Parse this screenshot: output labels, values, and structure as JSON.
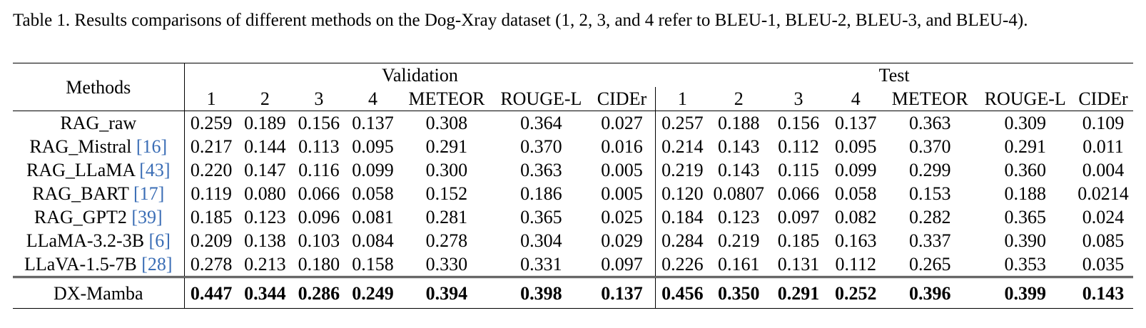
{
  "caption": {
    "label": "Table 1.",
    "text": "Results comparisons of different methods on the Dog-Xray dataset (1, 2, 3, and 4 refer to BLEU-1, BLEU-2, BLEU-3, and BLEU-4)."
  },
  "table": {
    "methods_header": "Methods",
    "group_validation": "Validation",
    "group_test": "Test",
    "columns": [
      "1",
      "2",
      "3",
      "4",
      "METEOR",
      "ROUGE-L",
      "CIDEr"
    ],
    "rows": [
      {
        "name": "RAG_raw",
        "ref": "",
        "val": [
          "0.259",
          "0.189",
          "0.156",
          "0.137",
          "0.308",
          "0.364",
          "0.027"
        ],
        "test": [
          "0.257",
          "0.188",
          "0.156",
          "0.137",
          "0.363",
          "0.309",
          "0.109"
        ]
      },
      {
        "name": "RAG_Mistral ",
        "ref": "[16]",
        "val": [
          "0.217",
          "0.144",
          "0.113",
          "0.095",
          "0.291",
          "0.370",
          "0.016"
        ],
        "test": [
          "0.214",
          "0.143",
          "0.112",
          "0.095",
          "0.370",
          "0.291",
          "0.011"
        ]
      },
      {
        "name": "RAG_LLaMA ",
        "ref": "[43]",
        "val": [
          "0.220",
          "0.147",
          "0.116",
          "0.099",
          "0.300",
          "0.363",
          "0.005"
        ],
        "test": [
          "0.219",
          "0.143",
          "0.115",
          "0.099",
          "0.299",
          "0.360",
          "0.004"
        ]
      },
      {
        "name": "RAG_BART ",
        "ref": "[17]",
        "val": [
          "0.119",
          "0.080",
          "0.066",
          "0.058",
          "0.152",
          "0.186",
          "0.005"
        ],
        "test": [
          "0.120",
          "0.0807",
          "0.066",
          "0.058",
          "0.153",
          "0.188",
          "0.0214"
        ]
      },
      {
        "name": "RAG_GPT2 ",
        "ref": "[39]",
        "val": [
          "0.185",
          "0.123",
          "0.096",
          "0.081",
          "0.281",
          "0.365",
          "0.025"
        ],
        "test": [
          "0.184",
          "0.123",
          "0.097",
          "0.082",
          "0.282",
          "0.365",
          "0.024"
        ]
      },
      {
        "name": "LLaMA-3.2-3B ",
        "ref": "[6]",
        "val": [
          "0.209",
          "0.138",
          "0.103",
          "0.084",
          "0.278",
          "0.304",
          "0.029"
        ],
        "test": [
          "0.284",
          "0.219",
          "0.185",
          "0.163",
          "0.337",
          "0.390",
          "0.085"
        ]
      },
      {
        "name": "LLaVA-1.5-7B ",
        "ref": "[28]",
        "val": [
          "0.278",
          "0.213",
          "0.180",
          "0.158",
          "0.330",
          "0.331",
          "0.097"
        ],
        "test": [
          "0.226",
          "0.161",
          "0.131",
          "0.112",
          "0.265",
          "0.353",
          "0.035"
        ]
      }
    ],
    "ours": {
      "name": "DX-Mamba",
      "val": [
        "0.447",
        "0.344",
        "0.286",
        "0.249",
        "0.394",
        "0.398",
        "0.137"
      ],
      "test": [
        "0.456",
        "0.350",
        "0.291",
        "0.252",
        "0.396",
        "0.399",
        "0.143"
      ]
    }
  }
}
